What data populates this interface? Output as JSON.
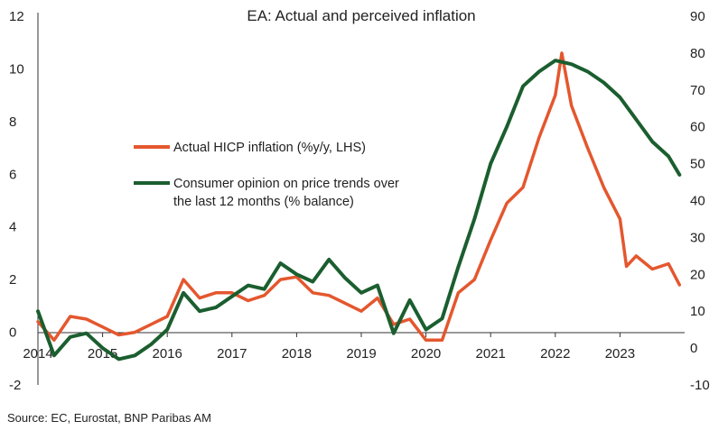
{
  "chart_data": {
    "type": "line",
    "title": "EA: Actual and perceived inflation",
    "x_ticks": [
      "2014",
      "2015",
      "2016",
      "2017",
      "2018",
      "2019",
      "2020",
      "2021",
      "2022",
      "2023"
    ],
    "y_left": {
      "ticks": [
        -2,
        0,
        2,
        4,
        6,
        8,
        10,
        12
      ],
      "range": [
        -2,
        12
      ]
    },
    "y_right": {
      "ticks": [
        -10,
        0,
        10,
        20,
        30,
        40,
        50,
        60,
        70,
        80,
        90
      ],
      "range": [
        -10,
        90
      ]
    },
    "grid": false,
    "legend_position": "center-left",
    "series": [
      {
        "name": "Actual HICP inflation (%y/y, LHS)",
        "axis": "left",
        "color": "#e4572e",
        "x": [
          2014.0,
          2014.25,
          2014.5,
          2014.75,
          2015.0,
          2015.25,
          2015.5,
          2015.75,
          2016.0,
          2016.25,
          2016.5,
          2016.75,
          2017.0,
          2017.25,
          2017.5,
          2017.75,
          2018.0,
          2018.25,
          2018.5,
          2018.75,
          2019.0,
          2019.25,
          2019.5,
          2019.75,
          2020.0,
          2020.25,
          2020.5,
          2020.75,
          2021.0,
          2021.25,
          2021.5,
          2021.75,
          2022.0,
          2022.1,
          2022.25,
          2022.5,
          2022.75,
          2023.0,
          2023.1,
          2023.25,
          2023.5,
          2023.75,
          2023.92
        ],
        "y": [
          0.4,
          -0.3,
          0.6,
          0.5,
          0.2,
          -0.1,
          0.0,
          0.3,
          0.6,
          2.0,
          1.3,
          1.5,
          1.5,
          1.2,
          1.4,
          2.0,
          2.1,
          1.5,
          1.4,
          1.1,
          0.8,
          1.3,
          0.3,
          0.5,
          -0.3,
          -0.3,
          1.5,
          2.0,
          3.5,
          4.9,
          5.5,
          7.4,
          9.0,
          10.6,
          8.6,
          7.0,
          5.5,
          4.3,
          2.5,
          2.9,
          2.4,
          2.6,
          1.8
        ]
      },
      {
        "name": "Consumer opinion on price trends over the last 12 months (% balance)",
        "axis": "right",
        "color": "#1b5e2f",
        "x": [
          2014.0,
          2014.25,
          2014.5,
          2014.75,
          2015.0,
          2015.25,
          2015.5,
          2015.75,
          2016.0,
          2016.25,
          2016.5,
          2016.75,
          2017.0,
          2017.25,
          2017.5,
          2017.75,
          2018.0,
          2018.25,
          2018.5,
          2018.75,
          2019.0,
          2019.25,
          2019.5,
          2019.75,
          2020.0,
          2020.25,
          2020.5,
          2020.75,
          2021.0,
          2021.25,
          2021.5,
          2021.75,
          2022.0,
          2022.25,
          2022.5,
          2022.75,
          2023.0,
          2023.25,
          2023.5,
          2023.75,
          2023.92
        ],
        "y": [
          10,
          -2,
          3,
          4,
          0,
          -3,
          -2,
          1,
          5,
          15,
          10,
          11,
          14,
          17,
          16,
          23,
          20,
          18,
          24,
          19,
          15,
          17,
          4,
          13,
          5,
          8,
          22,
          35,
          50,
          60,
          71,
          75,
          78,
          77,
          75,
          72,
          68,
          62,
          56,
          52,
          47
        ]
      }
    ],
    "source": "Source: EC, Eurostat, BNP Paribas AM"
  }
}
